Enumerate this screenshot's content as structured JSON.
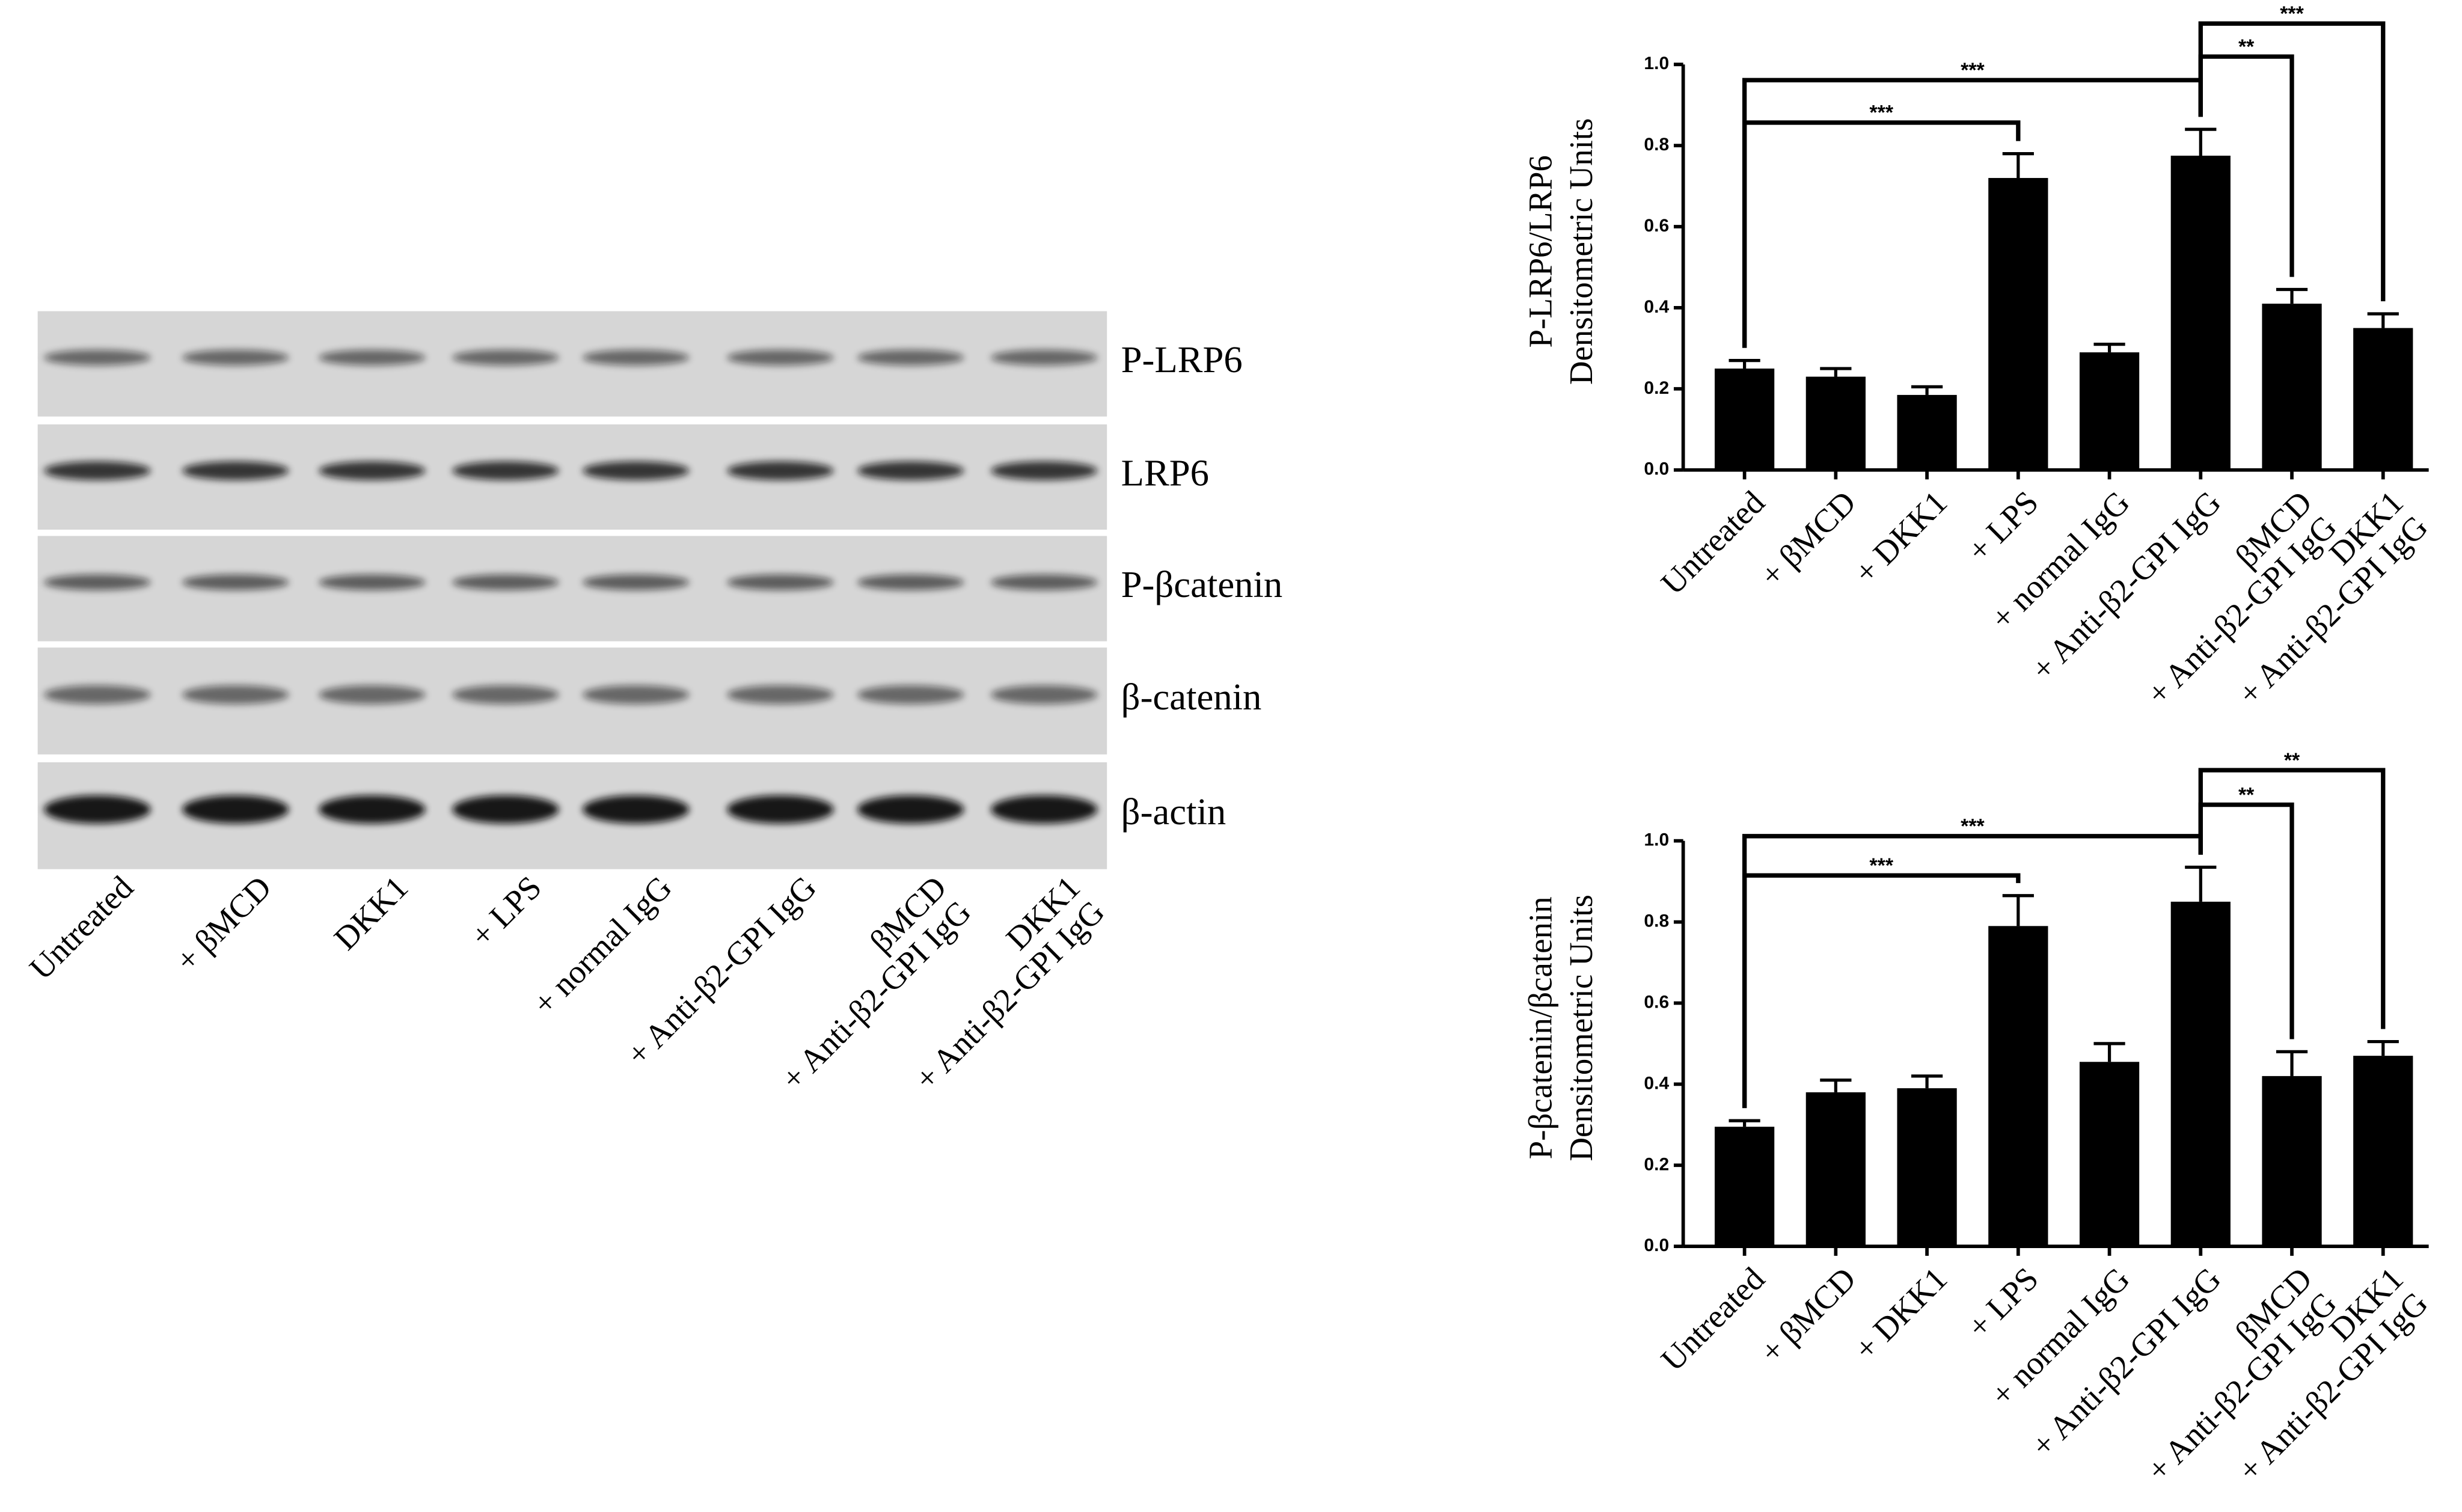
{
  "blot": {
    "rows": [
      "P-LRP6",
      "LRP6",
      "P-βcatenin",
      "β-catenin",
      "β-actin"
    ],
    "lanes": [
      "Untreated",
      "+ βMCD",
      "DKK1",
      "+ LPS",
      "+ normal IgG",
      "+ Anti-β2-GPI IgG",
      "βMCD\n+ Anti-β2-GPI IgG",
      "DKK1\n+ Anti-β2-GPI IgG"
    ]
  },
  "chart_data": [
    {
      "type": "bar",
      "y_label": "P-LRP6/LRP6\nDensitometric Units",
      "categories": [
        "Untreated",
        "+ βMCD",
        "+ DKK1",
        "+ LPS",
        "+ normal IgG",
        "+ Anti-β2-GPI IgG",
        "βMCD\n+ Anti-β2-GPI IgG",
        "DKK1\n+ Anti-β2-GPI IgG"
      ],
      "values": [
        0.25,
        0.23,
        0.185,
        0.72,
        0.29,
        0.775,
        0.41,
        0.35
      ],
      "errors": [
        0.02,
        0.02,
        0.02,
        0.06,
        0.02,
        0.065,
        0.035,
        0.035
      ],
      "color": "#000000",
      "ylim": [
        0,
        1
      ],
      "yticks": [
        {
          "value": 0,
          "label": "0.0"
        },
        0.2,
        0.4,
        0.6,
        0.8,
        {
          "value": 1,
          "label": "1.0"
        }
      ],
      "annotations": [
        {
          "from": 0,
          "to": 3,
          "label": "***"
        },
        {
          "from": 0,
          "to": 5,
          "label": "***"
        },
        {
          "from": 5,
          "to": 6,
          "label": "**"
        },
        {
          "from": 5,
          "to": 7,
          "label": "***"
        }
      ]
    },
    {
      "type": "bar",
      "y_label": "P-βcatenin/βcatenin\nDensitometric Units",
      "categories": [
        "Untreated",
        "+ βMCD",
        "+ DKK1",
        "+ LPS",
        "+ normal IgG",
        "+ Anti-β2-GPI IgG",
        "βMCD\n+ Anti-β2-GPI IgG",
        "DKK1\n+ Anti-β2-GPI IgG"
      ],
      "values": [
        0.295,
        0.38,
        0.39,
        0.79,
        0.455,
        0.85,
        0.42,
        0.47
      ],
      "errors": [
        0.015,
        0.03,
        0.03,
        0.075,
        0.045,
        0.085,
        0.06,
        0.035
      ],
      "color": "#000000",
      "ylim": [
        0,
        1
      ],
      "yticks": [
        {
          "value": 0,
          "label": "0.0"
        },
        0.2,
        0.4,
        0.6,
        0.8,
        {
          "value": 1,
          "label": "1.0"
        }
      ],
      "annotations": [
        {
          "from": 0,
          "to": 3,
          "label": "***"
        },
        {
          "from": 0,
          "to": 5,
          "label": "***"
        },
        {
          "from": 5,
          "to": 6,
          "label": "**"
        },
        {
          "from": 5,
          "to": 7,
          "label": "**"
        }
      ]
    }
  ]
}
